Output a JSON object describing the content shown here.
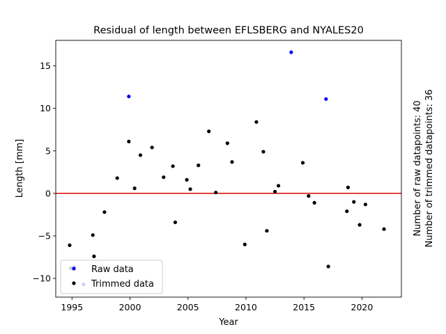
{
  "chart_data": {
    "type": "scatter",
    "title": "Residual of length between EFLSBERG and NYALES20",
    "xlabel": "Year",
    "ylabel": "Length [mm]",
    "xlim": [
      1993.6,
      2023.4
    ],
    "ylim": [
      -12.2,
      18.0
    ],
    "xticks": [
      1995,
      2000,
      2005,
      2010,
      2015,
      2020
    ],
    "yticks": [
      -10,
      -5,
      0,
      5,
      10,
      15
    ],
    "grid": false,
    "legend_position": "lower-left",
    "reference_line": {
      "y": 0,
      "color": "#dd0000"
    },
    "side_text": [
      "Number of raw datapoints: 40",
      "Number of trimmed datapoints: 36"
    ],
    "series": [
      {
        "name": "Raw data",
        "color": "#0000ee",
        "points": [
          [
            1995.2,
            -8.7
          ],
          [
            1996.0,
            -10.7
          ],
          [
            1999.9,
            11.4
          ],
          [
            2013.9,
            16.6
          ],
          [
            2016.9,
            11.1
          ]
        ]
      },
      {
        "name": "Trimmed data",
        "color": "#000000",
        "points": [
          [
            1994.8,
            -6.1
          ],
          [
            1996.8,
            -4.9
          ],
          [
            1996.9,
            -7.4
          ],
          [
            1997.8,
            -2.2
          ],
          [
            1998.9,
            1.8
          ],
          [
            1999.9,
            6.1
          ],
          [
            2000.4,
            0.6
          ],
          [
            2000.9,
            4.5
          ],
          [
            2001.9,
            5.4
          ],
          [
            2002.9,
            1.9
          ],
          [
            2003.7,
            3.2
          ],
          [
            2003.9,
            -3.4
          ],
          [
            2004.9,
            1.6
          ],
          [
            2005.2,
            0.5
          ],
          [
            2005.9,
            3.3
          ],
          [
            2006.8,
            7.3
          ],
          [
            2007.4,
            0.1
          ],
          [
            2008.4,
            5.9
          ],
          [
            2008.8,
            3.7
          ],
          [
            2009.9,
            -6.0
          ],
          [
            2010.9,
            8.4
          ],
          [
            2011.5,
            4.9
          ],
          [
            2011.8,
            -4.4
          ],
          [
            2012.5,
            0.2
          ],
          [
            2012.8,
            0.9
          ],
          [
            2014.9,
            3.6
          ],
          [
            2015.4,
            -0.3
          ],
          [
            2015.9,
            -1.1
          ],
          [
            2017.1,
            -8.6
          ],
          [
            2018.7,
            -2.1
          ],
          [
            2018.8,
            0.7
          ],
          [
            2019.3,
            -1.0
          ],
          [
            2019.8,
            -3.7
          ],
          [
            2020.3,
            -1.3
          ],
          [
            2021.9,
            -4.2
          ],
          [
            1994.9,
            -8.8
          ]
        ]
      }
    ]
  }
}
